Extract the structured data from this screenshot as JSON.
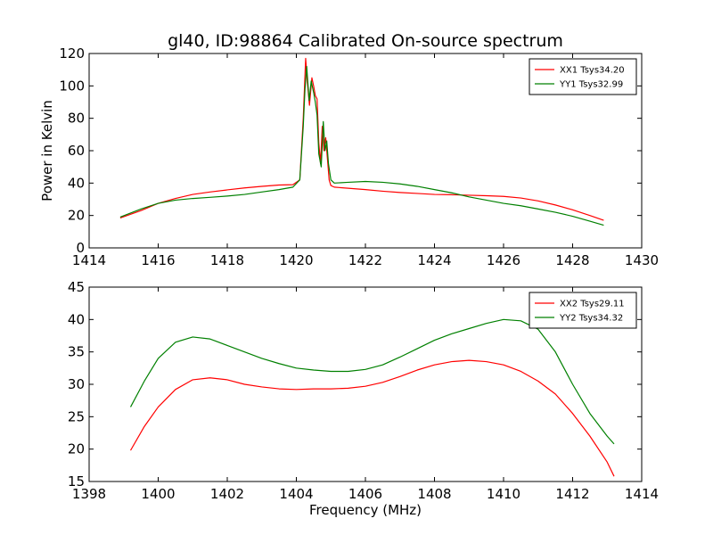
{
  "figure_title": "gl40, ID:98864 Calibrated On-source spectrum",
  "chart_data": [
    {
      "type": "line",
      "title": "gl40, ID:98864 Calibrated On-source spectrum",
      "xlabel": "",
      "ylabel": "Power in Kelvin",
      "xlim": [
        1414,
        1430
      ],
      "ylim": [
        0,
        120
      ],
      "xticks": [
        1414,
        1416,
        1418,
        1420,
        1422,
        1424,
        1426,
        1428,
        1430
      ],
      "yticks": [
        0,
        20,
        40,
        60,
        80,
        100,
        120
      ],
      "legend_position": "top-right",
      "series": [
        {
          "name": "XX1 Tsys34.20",
          "color": "#ff0000",
          "x": [
            1414.9,
            1415.5,
            1416.0,
            1416.5,
            1417.0,
            1417.5,
            1418.0,
            1418.5,
            1419.0,
            1419.5,
            1419.9,
            1420.1,
            1420.2,
            1420.27,
            1420.32,
            1420.38,
            1420.45,
            1420.5,
            1420.55,
            1420.6,
            1420.65,
            1420.7,
            1420.75,
            1420.8,
            1420.85,
            1420.9,
            1420.95,
            1421.0,
            1421.1,
            1421.5,
            1422.0,
            1422.5,
            1423.0,
            1423.5,
            1424.0,
            1424.5,
            1425.0,
            1425.5,
            1426.0,
            1426.5,
            1427.0,
            1427.5,
            1428.0,
            1428.5,
            1428.9
          ],
          "y": [
            18.5,
            23.0,
            27.5,
            30.5,
            33.0,
            34.5,
            35.8,
            37.0,
            38.0,
            38.8,
            39.0,
            42.0,
            80.0,
            117.0,
            102.0,
            88.0,
            105.0,
            100.0,
            94.0,
            92.0,
            65.0,
            52.0,
            75.0,
            60.0,
            68.0,
            55.0,
            42.0,
            38.5,
            37.5,
            36.8,
            36.0,
            35.0,
            34.2,
            33.6,
            33.0,
            32.8,
            32.5,
            32.2,
            31.8,
            30.8,
            29.0,
            26.5,
            23.5,
            20.0,
            17.0
          ]
        },
        {
          "name": "YY1 Tsys32.99",
          "color": "#008000",
          "x": [
            1414.9,
            1415.5,
            1416.0,
            1416.5,
            1417.0,
            1417.5,
            1418.0,
            1418.5,
            1419.0,
            1419.5,
            1419.9,
            1420.1,
            1420.2,
            1420.25,
            1420.3,
            1420.37,
            1420.43,
            1420.5,
            1420.55,
            1420.6,
            1420.65,
            1420.72,
            1420.78,
            1420.83,
            1420.88,
            1420.93,
            1421.0,
            1421.1,
            1421.5,
            1422.0,
            1422.5,
            1423.0,
            1423.5,
            1424.0,
            1424.5,
            1425.0,
            1425.5,
            1426.0,
            1426.5,
            1427.0,
            1427.5,
            1428.0,
            1428.5,
            1428.9
          ],
          "y": [
            19.0,
            24.0,
            27.5,
            29.5,
            30.5,
            31.2,
            32.0,
            33.0,
            34.5,
            36.0,
            37.5,
            42.0,
            75.0,
            98.0,
            112.0,
            91.0,
            103.0,
            96.0,
            90.0,
            82.0,
            58.0,
            50.0,
            78.0,
            60.0,
            66.0,
            52.0,
            42.0,
            40.0,
            40.5,
            41.0,
            40.5,
            39.5,
            38.0,
            36.0,
            34.0,
            31.5,
            29.5,
            27.5,
            26.0,
            24.0,
            22.0,
            19.5,
            16.5,
            14.0
          ]
        }
      ]
    },
    {
      "type": "line",
      "title": "",
      "xlabel": "Frequency (MHz)",
      "ylabel": "",
      "xlim": [
        1398,
        1414
      ],
      "ylim": [
        15,
        45
      ],
      "xticks": [
        1398,
        1400,
        1402,
        1404,
        1406,
        1408,
        1410,
        1412,
        1414
      ],
      "yticks": [
        15,
        20,
        25,
        30,
        35,
        40,
        45
      ],
      "legend_position": "top-right",
      "series": [
        {
          "name": "XX2 Tsys29.11",
          "color": "#ff0000",
          "x": [
            1399.2,
            1399.6,
            1400.0,
            1400.5,
            1401.0,
            1401.5,
            1402.0,
            1402.5,
            1403.0,
            1403.5,
            1404.0,
            1404.5,
            1405.0,
            1405.5,
            1406.0,
            1406.5,
            1407.0,
            1407.5,
            1408.0,
            1408.5,
            1409.0,
            1409.5,
            1410.0,
            1410.5,
            1411.0,
            1411.5,
            1412.0,
            1412.5,
            1413.0,
            1413.2
          ],
          "y": [
            19.8,
            23.5,
            26.5,
            29.2,
            30.7,
            31.0,
            30.7,
            30.0,
            29.6,
            29.3,
            29.2,
            29.3,
            29.3,
            29.4,
            29.7,
            30.3,
            31.2,
            32.2,
            33.0,
            33.5,
            33.7,
            33.5,
            33.0,
            32.0,
            30.5,
            28.5,
            25.5,
            22.0,
            18.0,
            15.8
          ]
        },
        {
          "name": "YY2 Tsys34.32",
          "color": "#008000",
          "x": [
            1399.2,
            1399.6,
            1400.0,
            1400.5,
            1401.0,
            1401.5,
            1402.0,
            1402.5,
            1403.0,
            1403.5,
            1404.0,
            1404.5,
            1405.0,
            1405.5,
            1406.0,
            1406.5,
            1407.0,
            1407.5,
            1408.0,
            1408.5,
            1409.0,
            1409.5,
            1410.0,
            1410.5,
            1411.0,
            1411.5,
            1412.0,
            1412.5,
            1413.0,
            1413.2
          ],
          "y": [
            26.5,
            30.5,
            34.0,
            36.5,
            37.3,
            37.0,
            36.0,
            35.0,
            34.0,
            33.2,
            32.5,
            32.2,
            32.0,
            32.0,
            32.3,
            33.0,
            34.2,
            35.5,
            36.8,
            37.8,
            38.6,
            39.4,
            40.0,
            39.8,
            38.5,
            35.0,
            30.0,
            25.5,
            22.0,
            20.8
          ]
        }
      ]
    }
  ]
}
